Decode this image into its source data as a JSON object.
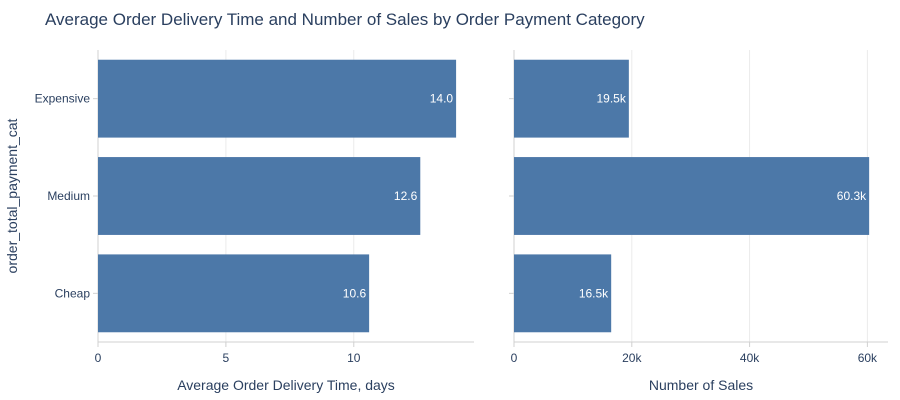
{
  "chart_data": {
    "title": "Average Order Delivery Time and Number of Sales by Order Payment Category",
    "ylabel": "order_total_payment_cat",
    "categories": [
      "Expensive",
      "Medium",
      "Cheap"
    ],
    "bar_color": "#4c78a8",
    "grid": true,
    "panels": [
      {
        "type": "bar",
        "orientation": "horizontal",
        "xlabel": "Average Order Delivery Time, days",
        "values": [
          14.0,
          12.6,
          10.6
        ],
        "value_labels": [
          "14.0",
          "12.6",
          "10.6"
        ],
        "xlim": [
          0,
          14.7
        ],
        "ticks": [
          0,
          5,
          10
        ],
        "tick_labels": [
          "0",
          "5",
          "10"
        ]
      },
      {
        "type": "bar",
        "orientation": "horizontal",
        "xlabel": "Number of Sales",
        "values": [
          19500,
          60300,
          16500
        ],
        "value_labels": [
          "19.5k",
          "60.3k",
          "16.5k"
        ],
        "xlim": [
          0,
          63500
        ],
        "ticks": [
          0,
          20000,
          40000,
          60000
        ],
        "tick_labels": [
          "0",
          "20k",
          "40k",
          "60k"
        ]
      }
    ]
  }
}
